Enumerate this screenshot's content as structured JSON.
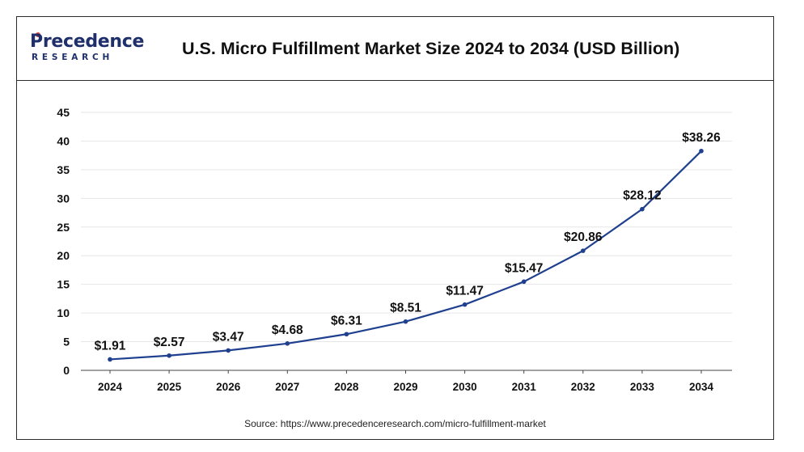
{
  "header": {
    "logo_top": "Precedence",
    "logo_bottom": "RESEARCH",
    "title": "U.S. Micro Fulfillment Market Size 2024 to 2034 (USD Billion)"
  },
  "source_text": "Source: https://www.precedenceresearch.com/micro-fulfillment-market",
  "colors": {
    "line": "#1f3f8f",
    "marker": "#1f3f8f",
    "grid": "#e6e6e6",
    "axis": "#444444",
    "text": "#111111",
    "logo": "#1f2f6b",
    "logo_accent": "#e03b2f"
  },
  "chart_data": {
    "type": "line",
    "title": "U.S. Micro Fulfillment Market Size 2024 to 2034 (USD Billion)",
    "categories": [
      "2024",
      "2025",
      "2026",
      "2027",
      "2028",
      "2029",
      "2030",
      "2031",
      "2032",
      "2033",
      "2034"
    ],
    "series": [
      {
        "values": [
          1.91,
          2.57,
          3.47,
          4.68,
          6.31,
          8.51,
          11.47,
          15.47,
          20.86,
          28.12,
          38.26
        ],
        "labels": [
          "$1.91",
          "$2.57",
          "$3.47",
          "$4.68",
          "$6.31",
          "$8.51",
          "$11.47",
          "$15.47",
          "$20.86",
          "$28.12",
          "$38.26"
        ]
      }
    ],
    "ylim": [
      0,
      45
    ],
    "yticks": [
      0,
      5,
      10,
      15,
      20,
      25,
      30,
      35,
      40,
      45
    ],
    "xlabel": "",
    "ylabel": "",
    "grid": true,
    "legend": "none"
  }
}
